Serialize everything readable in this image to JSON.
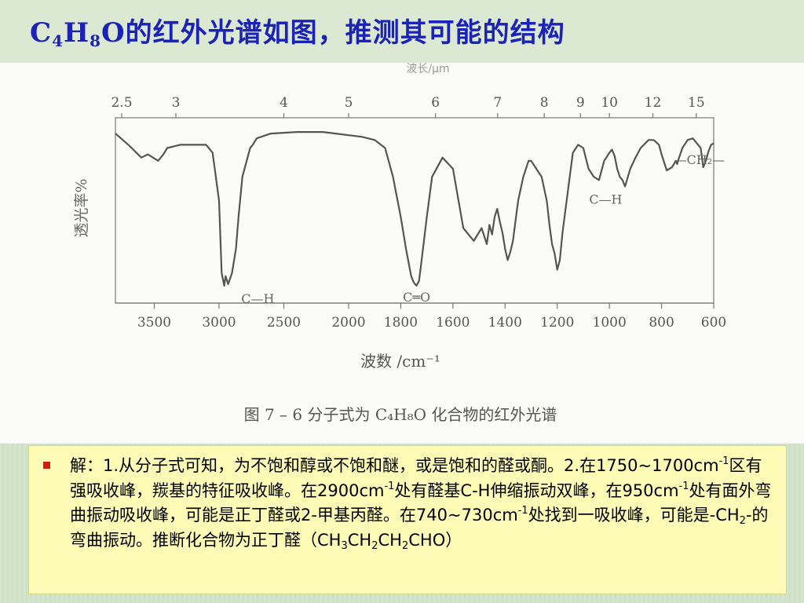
{
  "slide": {
    "title": {
      "c": "C",
      "c_sub": "4",
      "h": "H",
      "h_sub": "8",
      "rest": "O的红外光谱如图，推测其可能的结构"
    },
    "colors": {
      "title": "#1a22b8",
      "bullet": "#d21a10",
      "note_bg": "#fdfbb6",
      "spectrum_line": "#555555"
    }
  },
  "figure": {
    "header_fragment": "波长/μm",
    "caption": "图 7 – 6    分子式为 C₄H₈O 化合物的红外光谱",
    "ylabel": "透光率%",
    "xlabel": "波数 /cm⁻¹",
    "annotations": {
      "ch_stretch": "C—H",
      "carbonyl": "C═O",
      "ch_bend": "C—H",
      "ch2": "—CH₂—"
    }
  },
  "chart_data": {
    "type": "line",
    "title": "",
    "xlabel": "波数 /cm⁻¹",
    "ylabel": "透光率%",
    "x_ticks": [
      "3500",
      "3000",
      "2500",
      "2000",
      "1800",
      "1600",
      "1400",
      "1200",
      "1000",
      "800",
      "600"
    ],
    "top_ticks": [
      "2.5",
      "3",
      "4",
      "5",
      "6",
      "7",
      "8",
      "9",
      "10",
      "12",
      "15"
    ],
    "xlim": [
      600,
      3800
    ],
    "ylim": [
      0,
      100
    ],
    "series": [
      {
        "x": [
          3800,
          3700,
          3600,
          3550,
          3470,
          3430,
          3400,
          3300,
          3100,
          3050,
          3000,
          2980,
          2960,
          2950,
          2930,
          2900,
          2870,
          2850,
          2820,
          2780,
          2760,
          2740,
          2710,
          2600,
          2400,
          2200,
          2100,
          2000,
          1950,
          1900,
          1860,
          1830,
          1800,
          1780,
          1760,
          1750,
          1740,
          1730,
          1720,
          1700,
          1680,
          1640,
          1600,
          1560,
          1520,
          1490,
          1470,
          1460,
          1450,
          1440,
          1430,
          1420,
          1410,
          1400,
          1390,
          1380,
          1370,
          1350,
          1330,
          1310,
          1300,
          1280,
          1260,
          1240,
          1230,
          1220,
          1210,
          1200,
          1190,
          1180,
          1160,
          1140,
          1120,
          1100,
          1080,
          1060,
          1040,
          1020,
          1000,
          990,
          980,
          970,
          960,
          950,
          940,
          920,
          900,
          880,
          850,
          830,
          810,
          800,
          780,
          760,
          745,
          740,
          735,
          720,
          700,
          680,
          650,
          640,
          630,
          620,
          610,
          600
        ],
        "y": [
          97,
          90,
          82,
          84,
          80,
          84,
          88,
          90,
          90,
          85,
          55,
          10,
          2,
          8,
          3,
          10,
          25,
          45,
          70,
          82,
          88,
          90,
          94,
          97,
          98,
          98,
          97,
          96,
          95,
          93,
          88,
          70,
          45,
          25,
          8,
          4,
          2,
          5,
          18,
          45,
          70,
          82,
          75,
          38,
          30,
          38,
          28,
          40,
          34,
          45,
          50,
          42,
          35,
          25,
          18,
          23,
          30,
          55,
          70,
          80,
          80,
          75,
          70,
          55,
          40,
          28,
          22,
          12,
          18,
          35,
          60,
          85,
          90,
          88,
          75,
          70,
          68,
          80,
          85,
          87,
          83,
          75,
          70,
          68,
          64,
          75,
          82,
          88,
          93,
          93,
          90,
          84,
          74,
          76,
          80,
          78,
          81,
          88,
          93,
          94,
          88,
          76,
          80,
          86,
          90,
          91
        ]
      }
    ],
    "peak_labels": [
      {
        "text": "C—H",
        "x": 2950,
        "y": 2
      },
      {
        "text": "C═O",
        "x": 1730,
        "y": 2
      },
      {
        "text": "C—H",
        "x": 960,
        "y": 64
      },
      {
        "text": "—CH₂—",
        "x": 745,
        "y": 75
      }
    ]
  },
  "note": {
    "p1": "解：1.从分子式可知，为不饱和醇或不饱和醚，或是饱和的醛或酮。2.在1750~1700cm",
    "sup1": "-1",
    "p2": "区有强吸收峰，羰基的特征吸收峰。在2900cm",
    "sup2": "-1",
    "p3": "处有醛基C-H伸缩振动双峰，在950cm",
    "sup3": "-1",
    "p4": "处有面外弯曲振动吸收峰，可能是正丁醛或2-甲基丙醛。在740~730cm",
    "sup4": "-1",
    "p5": "处找到一吸收峰，可能是-CH",
    "sub5": "2",
    "p6": "-的弯曲振动。推断化合物为正丁醛（CH",
    "sub6": "3",
    "p7": "CH",
    "sub7": "2",
    "p8": "CH",
    "sub8": "2",
    "p9": "CHO）"
  }
}
